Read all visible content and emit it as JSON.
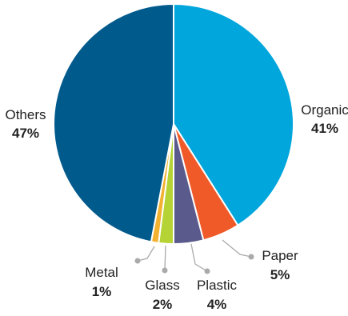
{
  "chart_data": {
    "type": "pie",
    "title": "",
    "slices": [
      {
        "label": "Organic",
        "value": 41,
        "value_label": "41%",
        "color": "#00a6dc"
      },
      {
        "label": "Paper",
        "value": 5,
        "value_label": "5%",
        "color": "#f05a28"
      },
      {
        "label": "Plastic",
        "value": 4,
        "value_label": "4%",
        "color": "#5a5a8c"
      },
      {
        "label": "Glass",
        "value": 2,
        "value_label": "2%",
        "color": "#b5d334"
      },
      {
        "label": "Metal",
        "value": 1,
        "value_label": "1%",
        "color": "#f2b12e"
      },
      {
        "label": "Others",
        "value": 47,
        "value_label": "47%",
        "color": "#005a8c"
      }
    ],
    "start_angle": "12 o'clock",
    "direction": "clockwise",
    "slice_border_color": "#ffffff",
    "leader_line_color": "#aaaaaa"
  }
}
